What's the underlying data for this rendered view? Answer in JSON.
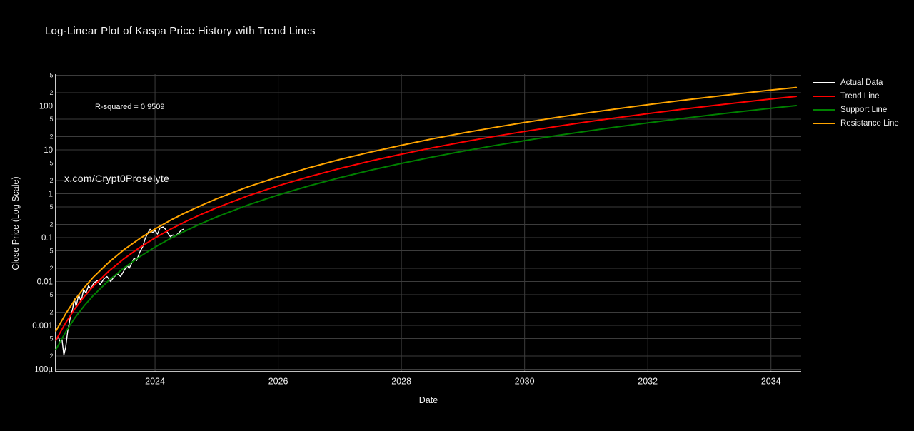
{
  "title": "Log-Linear Plot of Kaspa Price History with Trend Lines",
  "xlabel": "Date",
  "ylabel": "Close Price (Log Scale)",
  "annotations": {
    "r_squared": "R-squared = 0.9509",
    "watermark": "x.com/Crypt0Proselyte"
  },
  "colors": {
    "background": "#000000",
    "text": "#f2f2f2",
    "grid": "#3c3c3c",
    "axis_line": "#ffffff",
    "actual": "#ffffff",
    "trend": "#ff0000",
    "support": "#008000",
    "resistance": "#ffa500"
  },
  "legend": {
    "items": [
      {
        "label": "Actual Data",
        "color": "#ffffff"
      },
      {
        "label": "Trend Line",
        "color": "#ff0000"
      },
      {
        "label": "Support Line",
        "color": "#008000"
      },
      {
        "label": "Resistance Line",
        "color": "#ffa500"
      }
    ]
  },
  "chart_data": {
    "type": "line",
    "title": "Log-Linear Plot of Kaspa Price History with Trend Lines",
    "xlabel": "Date",
    "ylabel": "Close Price (Log Scale)",
    "r_squared_value": 0.9509,
    "grid": true,
    "legend_position": "outside-top-right",
    "x_axis": {
      "range": [
        2022.388,
        2034.49
      ],
      "ticks": [
        {
          "v": 2024,
          "label": "2024"
        },
        {
          "v": 2026,
          "label": "2026"
        },
        {
          "v": 2028,
          "label": "2028"
        },
        {
          "v": 2030,
          "label": "2030"
        },
        {
          "v": 2032,
          "label": "2032"
        },
        {
          "v": 2034,
          "label": "2034"
        }
      ]
    },
    "y_axis": {
      "scale": "log",
      "range": [
        8.77e-05,
        529
      ],
      "major_ticks": [
        {
          "v": 100,
          "label": "100"
        },
        {
          "v": 10,
          "label": "10"
        },
        {
          "v": 1,
          "label": "1"
        },
        {
          "v": 0.1,
          "label": "0.1"
        },
        {
          "v": 0.01,
          "label": "0.01"
        },
        {
          "v": 0.001,
          "label": "0.001"
        },
        {
          "v": 0.0001,
          "label": "100µ"
        }
      ],
      "minor_ticks": [
        {
          "v": 500,
          "label": "5"
        },
        {
          "v": 200,
          "label": "2"
        },
        {
          "v": 50,
          "label": "5"
        },
        {
          "v": 20,
          "label": "2"
        },
        {
          "v": 5,
          "label": "5"
        },
        {
          "v": 2,
          "label": "2"
        },
        {
          "v": 0.5,
          "label": "5"
        },
        {
          "v": 0.2,
          "label": "2"
        },
        {
          "v": 0.05,
          "label": "5"
        },
        {
          "v": 0.02,
          "label": "2"
        },
        {
          "v": 0.005,
          "label": "5"
        },
        {
          "v": 0.002,
          "label": "2"
        },
        {
          "v": 0.0005,
          "label": "5"
        },
        {
          "v": 0.0002,
          "label": "2"
        }
      ]
    },
    "series": [
      {
        "name": "Actual Data",
        "color": "#ffffff",
        "width": 1.4,
        "points": [
          [
            2022.39,
            0.00045
          ],
          [
            2022.43,
            0.00055
          ],
          [
            2022.46,
            0.00042
          ],
          [
            2022.49,
            0.00048
          ],
          [
            2022.52,
            0.00021
          ],
          [
            2022.55,
            0.00032
          ],
          [
            2022.58,
            0.0007
          ],
          [
            2022.62,
            0.0014
          ],
          [
            2022.66,
            0.0023
          ],
          [
            2022.69,
            0.004
          ],
          [
            2022.72,
            0.0027
          ],
          [
            2022.76,
            0.005
          ],
          [
            2022.8,
            0.0035
          ],
          [
            2022.84,
            0.0065
          ],
          [
            2022.88,
            0.0055
          ],
          [
            2022.92,
            0.008
          ],
          [
            2022.96,
            0.0068
          ],
          [
            2023.0,
            0.009
          ],
          [
            2023.06,
            0.0105
          ],
          [
            2023.11,
            0.0085
          ],
          [
            2023.17,
            0.0115
          ],
          [
            2023.22,
            0.013
          ],
          [
            2023.28,
            0.01
          ],
          [
            2023.33,
            0.0125
          ],
          [
            2023.39,
            0.015
          ],
          [
            2023.44,
            0.013
          ],
          [
            2023.5,
            0.018
          ],
          [
            2023.55,
            0.023
          ],
          [
            2023.58,
            0.02
          ],
          [
            2023.62,
            0.026
          ],
          [
            2023.66,
            0.034
          ],
          [
            2023.7,
            0.03
          ],
          [
            2023.75,
            0.046
          ],
          [
            2023.8,
            0.062
          ],
          [
            2023.84,
            0.095
          ],
          [
            2023.88,
            0.125
          ],
          [
            2023.92,
            0.155
          ],
          [
            2023.96,
            0.13
          ],
          [
            2024.0,
            0.145
          ],
          [
            2024.04,
            0.12
          ],
          [
            2024.08,
            0.165
          ],
          [
            2024.13,
            0.175
          ],
          [
            2024.17,
            0.155
          ],
          [
            2024.21,
            0.125
          ],
          [
            2024.25,
            0.105
          ],
          [
            2024.29,
            0.115
          ],
          [
            2024.33,
            0.11
          ],
          [
            2024.38,
            0.125
          ],
          [
            2024.42,
            0.145
          ],
          [
            2024.46,
            0.155
          ]
        ]
      },
      {
        "name": "Trend Line",
        "color": "#ff0000",
        "width": 2,
        "points": [
          [
            2022.39,
            0.00046
          ],
          [
            2022.55,
            0.00115
          ],
          [
            2022.7,
            0.00241
          ],
          [
            2022.85,
            0.00454
          ],
          [
            2023,
            0.00786
          ],
          [
            2023.25,
            0.0172
          ],
          [
            2023.5,
            0.0334
          ],
          [
            2023.75,
            0.0593
          ],
          [
            2024,
            0.0984
          ],
          [
            2024.25,
            0.155
          ],
          [
            2024.5,
            0.233
          ],
          [
            2024.75,
            0.339
          ],
          [
            2025,
            0.478
          ],
          [
            2025.5,
            0.886
          ],
          [
            2026,
            1.52
          ],
          [
            2026.5,
            2.44
          ],
          [
            2027,
            3.76
          ],
          [
            2027.5,
            5.57
          ],
          [
            2028,
            7.96
          ],
          [
            2028.5,
            11.1
          ],
          [
            2029,
            15.1
          ],
          [
            2029.5,
            20.1
          ],
          [
            2030,
            26.3
          ],
          [
            2030.5,
            33.8
          ],
          [
            2031,
            43
          ],
          [
            2031.5,
            53.9
          ],
          [
            2032,
            66.7
          ],
          [
            2032.5,
            82
          ],
          [
            2033,
            99.6
          ],
          [
            2033.5,
            120
          ],
          [
            2034,
            144
          ],
          [
            2034.41,
            165
          ]
        ]
      },
      {
        "name": "Support Line",
        "color": "#008000",
        "width": 2,
        "points": [
          [
            2022.39,
            0.00028
          ],
          [
            2022.55,
            0.00071
          ],
          [
            2022.7,
            0.00149
          ],
          [
            2022.85,
            0.0028
          ],
          [
            2023,
            0.00485
          ],
          [
            2023.25,
            0.0106
          ],
          [
            2023.5,
            0.0206
          ],
          [
            2023.75,
            0.0366
          ],
          [
            2024,
            0.0607
          ],
          [
            2024.25,
            0.0957
          ],
          [
            2024.5,
            0.144
          ],
          [
            2024.75,
            0.209
          ],
          [
            2025,
            0.295
          ],
          [
            2025.5,
            0.547
          ],
          [
            2026,
            0.938
          ],
          [
            2026.5,
            1.51
          ],
          [
            2027,
            2.32
          ],
          [
            2027.5,
            3.44
          ],
          [
            2028,
            4.91
          ],
          [
            2028.5,
            6.85
          ],
          [
            2029,
            9.32
          ],
          [
            2029.5,
            12.4
          ],
          [
            2030,
            16.2
          ],
          [
            2030.5,
            20.9
          ],
          [
            2031,
            26.5
          ],
          [
            2031.5,
            33.3
          ],
          [
            2032,
            41.2
          ],
          [
            2032.5,
            50.6
          ],
          [
            2033,
            61.5
          ],
          [
            2033.5,
            74.2
          ],
          [
            2034,
            88.6
          ],
          [
            2034.41,
            102
          ]
        ]
      },
      {
        "name": "Resistance Line",
        "color": "#ffa500",
        "width": 2,
        "points": [
          [
            2022.39,
            0.00074
          ],
          [
            2022.55,
            0.00184
          ],
          [
            2022.7,
            0.00386
          ],
          [
            2022.85,
            0.00726
          ],
          [
            2023,
            0.0126
          ],
          [
            2023.25,
            0.0275
          ],
          [
            2023.5,
            0.0534
          ],
          [
            2023.75,
            0.0949
          ],
          [
            2024,
            0.157
          ],
          [
            2024.25,
            0.248
          ],
          [
            2024.5,
            0.373
          ],
          [
            2024.75,
            0.542
          ],
          [
            2025,
            0.765
          ],
          [
            2025.5,
            1.42
          ],
          [
            2026,
            2.43
          ],
          [
            2026.5,
            3.9
          ],
          [
            2027,
            6.02
          ],
          [
            2027.5,
            8.91
          ],
          [
            2028,
            12.7
          ],
          [
            2028.5,
            17.8
          ],
          [
            2029,
            24.2
          ],
          [
            2029.5,
            32.2
          ],
          [
            2030,
            42.1
          ],
          [
            2030.5,
            54.1
          ],
          [
            2031,
            68.8
          ],
          [
            2031.5,
            86.2
          ],
          [
            2032,
            107
          ],
          [
            2032.5,
            131
          ],
          [
            2033,
            159
          ],
          [
            2033.5,
            192
          ],
          [
            2034,
            230
          ],
          [
            2034.41,
            264
          ]
        ]
      }
    ]
  }
}
